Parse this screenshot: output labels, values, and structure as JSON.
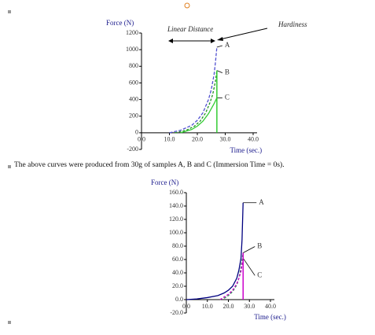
{
  "chart_data": [
    {
      "type": "line",
      "title": "Force   (N)",
      "x_label": "Time (sec.)",
      "xlim": [
        0,
        40
      ],
      "xticks": [
        {
          "value": 0,
          "label": "0.0"
        },
        {
          "value": 10,
          "label": "10.0"
        },
        {
          "value": 20,
          "label": "20.0"
        },
        {
          "value": 30,
          "label": "30.0"
        },
        {
          "value": 40,
          "label": "40.0"
        }
      ],
      "ylim": [
        -200,
        1200
      ],
      "yticks": [
        -200,
        0,
        200,
        400,
        600,
        800,
        1000,
        1200
      ],
      "annotations": [
        "Linear Distance",
        "Hardiness"
      ],
      "series": [
        {
          "name": "A",
          "color": "#5050d0",
          "x": [
            10,
            14,
            18,
            20,
            22,
            24,
            25,
            26,
            26.5,
            27
          ],
          "values": [
            0,
            30,
            90,
            150,
            240,
            400,
            520,
            700,
            850,
            1030
          ]
        },
        {
          "name": "B",
          "color": "#209020",
          "x": [
            12,
            16,
            19,
            21,
            23,
            24.5,
            25.5,
            26.5,
            27
          ],
          "values": [
            0,
            30,
            80,
            140,
            240,
            360,
            460,
            620,
            750
          ]
        },
        {
          "name": "C",
          "color": "#33cc33",
          "x": [
            14,
            18,
            20,
            22,
            24,
            25,
            26,
            27
          ],
          "values": [
            0,
            40,
            80,
            140,
            230,
            290,
            350,
            420
          ]
        }
      ]
    },
    {
      "type": "line",
      "title": "Force   (N)",
      "x_label": "Time (sec.)",
      "xlim": [
        0,
        40
      ],
      "xticks": [
        {
          "value": 0,
          "label": "0.0"
        },
        {
          "value": 10,
          "label": "10.0"
        },
        {
          "value": 20,
          "label": "20.0"
        },
        {
          "value": 30,
          "label": "30.0"
        },
        {
          "value": 40,
          "label": "40.0"
        }
      ],
      "ylim": [
        -20,
        160
      ],
      "yticks": [
        {
          "value": -20,
          "label": "-20.0"
        },
        {
          "value": 0,
          "label": "0.0"
        },
        {
          "value": 20,
          "label": "20.0"
        },
        {
          "value": 40,
          "label": "40.0"
        },
        {
          "value": 60,
          "label": "60.0"
        },
        {
          "value": 80,
          "label": "80.0"
        },
        {
          "value": 100,
          "label": "100.0"
        },
        {
          "value": 120,
          "label": "120.0"
        },
        {
          "value": 140,
          "label": "140.0"
        },
        {
          "value": 160,
          "label": "160.0"
        }
      ],
      "series": [
        {
          "name": "A",
          "color": "#000080",
          "x": [
            0,
            5,
            10,
            15,
            18,
            20,
            22,
            24,
            25,
            26,
            26.5,
            27
          ],
          "values": [
            0,
            1,
            3,
            6,
            10,
            14,
            20,
            32,
            44,
            62,
            90,
            145
          ]
        },
        {
          "name": "B",
          "color": "#2e8b57",
          "x": [
            18,
            20,
            22,
            24,
            25,
            26,
            27
          ],
          "values": [
            2,
            6,
            12,
            22,
            32,
            48,
            70
          ]
        },
        {
          "name": "C",
          "color": "#cc00cc",
          "x": [
            16,
            20,
            22,
            24,
            25,
            26,
            27
          ],
          "values": [
            0,
            8,
            14,
            24,
            32,
            42,
            62
          ]
        }
      ]
    }
  ],
  "caption": "The above curves were produced from 30g of samples A, B and C (Immersion Time = 0s)."
}
